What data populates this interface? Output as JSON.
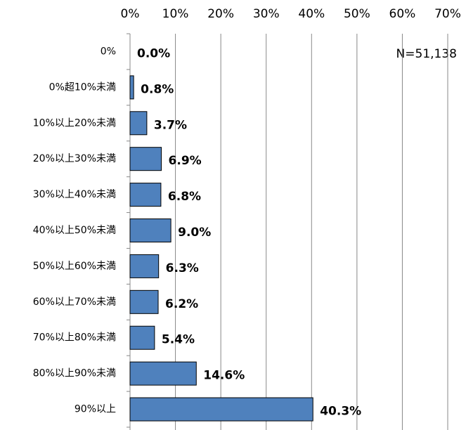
{
  "chart_data": {
    "type": "bar",
    "orientation": "horizontal",
    "annotation": "N=51,138",
    "categories": [
      "0%",
      "0%超10%未満",
      "10%以上20%未満",
      "20%以上30%未満",
      "30%以上40%未満",
      "40%以上50%未満",
      "50%以上60%未満",
      "60%以上70%未満",
      "70%以上80%未満",
      "80%以上90%未満",
      "90%以上"
    ],
    "values": [
      0.0,
      0.8,
      3.7,
      6.9,
      6.8,
      9.0,
      6.3,
      6.2,
      5.4,
      14.6,
      40.3
    ],
    "value_labels": [
      "0.0%",
      "0.8%",
      "3.7%",
      "6.9%",
      "6.8%",
      "9.0%",
      "6.3%",
      "6.2%",
      "5.4%",
      "14.6%",
      "40.3%"
    ],
    "color": "#4f81bd",
    "xlim": [
      0,
      70
    ],
    "xticks": [
      {
        "value": 0,
        "label": "0%"
      },
      {
        "value": 10,
        "label": "10%"
      },
      {
        "value": 20,
        "label": "20%"
      },
      {
        "value": 30,
        "label": "30%"
      },
      {
        "value": 40,
        "label": "40%"
      },
      {
        "value": 50,
        "label": "50%"
      },
      {
        "value": 60,
        "label": "60%"
      },
      {
        "value": 70,
        "label": "70%"
      }
    ],
    "grid": true
  }
}
